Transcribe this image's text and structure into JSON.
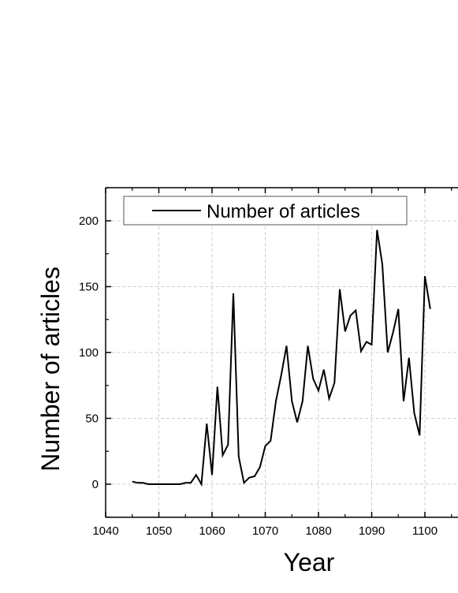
{
  "chart_data": {
    "type": "line",
    "xlabel": "Year",
    "ylabel": "Number of articles",
    "xlim": [
      1040,
      1103
    ],
    "ylim": [
      -25,
      225
    ],
    "xticks": [
      1040,
      1050,
      1060,
      1070,
      1080,
      1090,
      1100
    ],
    "xtick_labels": [
      "1040",
      "1050",
      "1060",
      "1070",
      "1080",
      "1090",
      "1100"
    ],
    "yticks": [
      0,
      50,
      100,
      150,
      200
    ],
    "ytick_labels": [
      "0",
      "50",
      "100",
      "150",
      "200"
    ],
    "grid": true,
    "legend_position": "top-left",
    "series": [
      {
        "name": "Number of articles",
        "color": "#000000",
        "x": [
          1045,
          1046,
          1047,
          1048,
          1049,
          1050,
          1051,
          1052,
          1053,
          1054,
          1055,
          1056,
          1057,
          1058,
          1059,
          1060,
          1061,
          1062,
          1063,
          1064,
          1065,
          1066,
          1067,
          1068,
          1069,
          1070,
          1071,
          1072,
          1073,
          1074,
          1075,
          1076,
          1077,
          1078,
          1079,
          1080,
          1081,
          1082,
          1083,
          1084,
          1085,
          1086,
          1087,
          1088,
          1089,
          1090,
          1091,
          1092,
          1093,
          1094,
          1095,
          1096,
          1097,
          1098,
          1099,
          1100,
          1101
        ],
        "y": [
          2,
          1,
          1,
          0,
          0,
          0,
          0,
          0,
          0,
          0,
          1,
          1,
          7,
          0,
          46,
          7,
          74,
          22,
          30,
          145,
          21,
          1,
          5,
          6,
          13,
          29,
          33,
          63,
          83,
          105,
          63,
          47,
          63,
          105,
          80,
          71,
          87,
          65,
          77,
          148,
          116,
          128,
          132,
          101,
          108,
          106,
          193,
          167,
          100,
          115,
          133,
          63,
          96,
          54,
          37,
          158,
          133
        ]
      }
    ]
  }
}
